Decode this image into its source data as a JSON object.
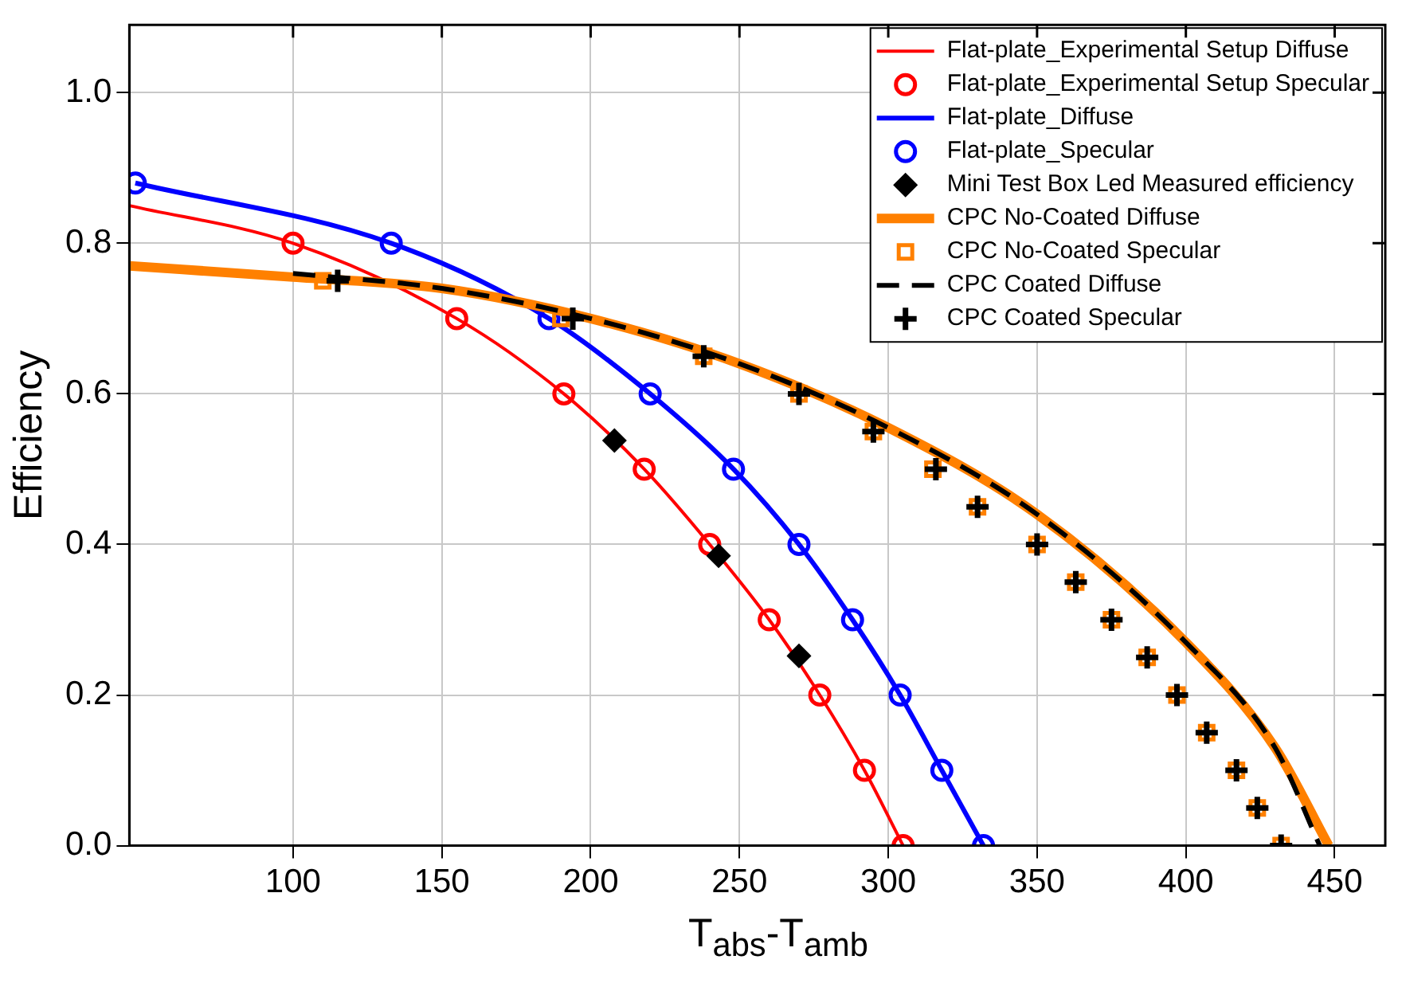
{
  "chart_data": {
    "type": "line",
    "xlabel": "T$_{abs}$-T$_{amb}$",
    "ylabel": "Efficiency",
    "xlim": [
      45,
      467
    ],
    "ylim": [
      0,
      1.09
    ],
    "xticks": [
      100,
      150,
      200,
      250,
      300,
      350,
      400,
      450
    ],
    "yticks": [
      {
        "value": 0,
        "label": "0.0"
      },
      {
        "value": 0.2,
        "label": "0.2"
      },
      {
        "value": 0.4,
        "label": "0.4"
      },
      {
        "value": 0.6,
        "label": "0.6"
      },
      {
        "value": 0.8,
        "label": "0.8"
      },
      {
        "value": 1,
        "label": "1.0"
      }
    ],
    "grid": true,
    "legend": "top right",
    "series": [
      {
        "name": "Flat-plate_Experimental Setup Diffuse",
        "marker": "none",
        "line_style": "solid",
        "color": "#ff0000",
        "x": [
          45,
          100,
          155,
          191,
          218,
          240,
          260,
          277,
          292,
          305
        ],
        "values": [
          0.85,
          0.8,
          0.7,
          0.6,
          0.5,
          0.4,
          0.3,
          0.2,
          0.1,
          0
        ]
      },
      {
        "name": "Flat-plate_Experimental Setup Specular",
        "type": "scatter",
        "marker": "circle",
        "color": "#ff0000",
        "x": [
          100,
          155,
          191,
          218,
          240,
          260,
          277,
          292,
          305
        ],
        "values": [
          0.8,
          0.7,
          0.6,
          0.5,
          0.4,
          0.3,
          0.2,
          0.1,
          0
        ]
      },
      {
        "name": "Flat-plate_Diffuse",
        "marker": "none",
        "line_style": "solid",
        "color": "#0000ff",
        "x": [
          47,
          133,
          186,
          220,
          248,
          270,
          288,
          304,
          318,
          332
        ],
        "values": [
          0.88,
          0.8,
          0.7,
          0.6,
          0.5,
          0.4,
          0.3,
          0.2,
          0.1,
          0
        ]
      },
      {
        "name": "Flat-plate_Specular",
        "type": "scatter",
        "marker": "circle",
        "color": "#0000ff",
        "x": [
          47,
          133,
          186,
          220,
          248,
          270,
          288,
          304,
          318,
          332
        ],
        "values": [
          0.88,
          0.8,
          0.7,
          0.6,
          0.5,
          0.4,
          0.3,
          0.2,
          0.1,
          0
        ]
      },
      {
        "name": "Mini Test Box Led Measured efficiency",
        "type": "scatter",
        "marker": "diamond",
        "color": "#000000",
        "x": [
          208,
          243,
          270
        ],
        "values": [
          0.538,
          0.385,
          0.252
        ]
      },
      {
        "name": "CPC No-Coated Diffuse",
        "marker": "none",
        "line_style": "solid",
        "color": "#ff8000",
        "x": [
          45,
          100,
          150,
          200,
          250,
          300,
          350,
          400,
          430,
          448
        ],
        "values": [
          0.77,
          0.755,
          0.74,
          0.7,
          0.64,
          0.555,
          0.44,
          0.27,
          0.13,
          0
        ]
      },
      {
        "name": "CPC No-Coated Specular",
        "type": "scatter",
        "marker": "square",
        "color": "#ff8000",
        "x": [
          110,
          190,
          238,
          270,
          295,
          315,
          330,
          350,
          363,
          375,
          387,
          397,
          407,
          417,
          424,
          432
        ],
        "values": [
          0.75,
          0.7,
          0.65,
          0.6,
          0.55,
          0.5,
          0.45,
          0.4,
          0.35,
          0.3,
          0.25,
          0.2,
          0.15,
          0.1,
          0.05,
          0
        ]
      },
      {
        "name": "CPC Coated Diffuse",
        "marker": "none",
        "line_style": "dashed",
        "color": "#000000",
        "x": [
          100,
          150,
          200,
          250,
          300,
          350,
          400,
          430,
          445
        ],
        "values": [
          0.76,
          0.74,
          0.7,
          0.64,
          0.555,
          0.44,
          0.27,
          0.13,
          0
        ]
      },
      {
        "name": "CPC Coated Specular",
        "type": "scatter",
        "marker": "cross",
        "color": "#000000",
        "x": [
          115,
          194,
          238,
          270,
          295,
          316,
          330,
          350,
          363,
          375,
          387,
          397,
          407,
          417,
          424,
          432
        ],
        "values": [
          0.75,
          0.7,
          0.65,
          0.6,
          0.55,
          0.5,
          0.45,
          0.4,
          0.35,
          0.3,
          0.25,
          0.2,
          0.15,
          0.1,
          0.05,
          0
        ]
      }
    ]
  }
}
